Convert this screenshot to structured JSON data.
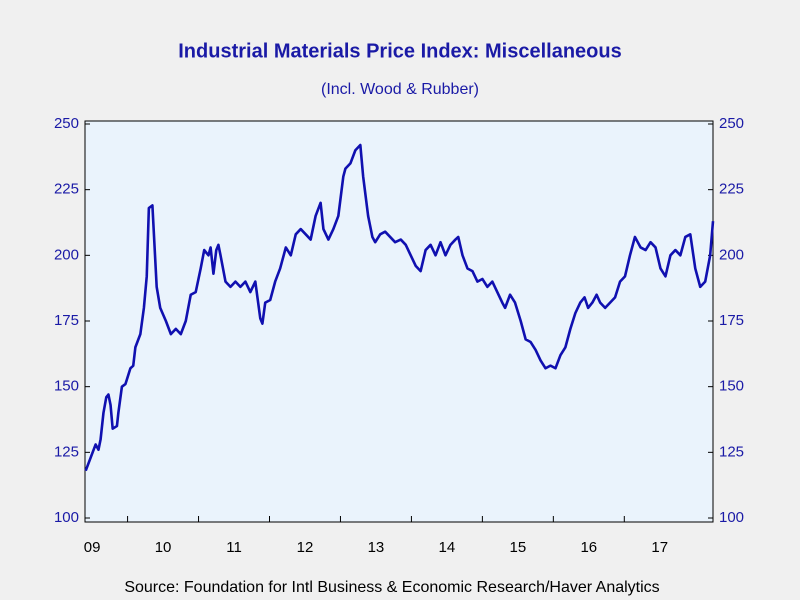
{
  "chart_data": {
    "type": "line",
    "title": "Industrial Materials Price Index: Miscellaneous",
    "subtitle": "(Incl. Wood & Rubber)",
    "source": "Source:  Foundation for Intl Business & Economic Research/Haver Analytics",
    "x": [
      2009.41,
      2009.48,
      2009.55,
      2009.59,
      2009.62,
      2009.66,
      2009.7,
      2009.73,
      2009.76,
      2009.79,
      2009.85,
      2009.87,
      2009.92,
      2009.97,
      2010.04,
      2010.08,
      2010.11,
      2010.18,
      2010.23,
      2010.27,
      2010.3,
      2010.35,
      2010.41,
      2010.46,
      2010.54,
      2010.61,
      2010.68,
      2010.75,
      2010.82,
      2010.89,
      2010.96,
      2011.03,
      2011.08,
      2011.14,
      2011.17,
      2011.21,
      2011.25,
      2011.28,
      2011.31,
      2011.38,
      2011.45,
      2011.52,
      2011.59,
      2011.66,
      2011.73,
      2011.8,
      2011.87,
      2011.9,
      2011.94,
      2012.01,
      2012.08,
      2012.15,
      2012.23,
      2012.3,
      2012.37,
      2012.44,
      2012.51,
      2012.58,
      2012.65,
      2012.72,
      2012.76,
      2012.83,
      2012.9,
      2012.97,
      2013.04,
      2013.07,
      2013.14,
      2013.21,
      2013.28,
      2013.32,
      2013.39,
      2013.45,
      2013.49,
      2013.56,
      2013.63,
      2013.7,
      2013.77,
      2013.85,
      2013.92,
      2013.99,
      2014.06,
      2014.13,
      2014.2,
      2014.27,
      2014.34,
      2014.41,
      2014.48,
      2014.55,
      2014.62,
      2014.66,
      2014.72,
      2014.79,
      2014.86,
      2014.93,
      2015.0,
      2015.07,
      2015.14,
      2015.21,
      2015.28,
      2015.32,
      2015.39,
      2015.46,
      2015.54,
      2015.61,
      2015.68,
      2015.75,
      2015.82,
      2015.89,
      2015.96,
      2016.03,
      2016.1,
      2016.17,
      2016.24,
      2016.31,
      2016.38,
      2016.44,
      2016.49,
      2016.55,
      2016.61,
      2016.66,
      2016.73,
      2016.8,
      2016.87,
      2016.94,
      2017.01,
      2017.08,
      2017.15,
      2017.23,
      2017.3,
      2017.37,
      2017.44,
      2017.51,
      2017.58,
      2017.65,
      2017.72,
      2017.79,
      2017.86,
      2017.93,
      2018.0,
      2018.07,
      2018.14,
      2018.21,
      2018.25
    ],
    "series": [
      {
        "color": "#1010b0",
        "values": [
          118,
          123,
          128,
          126,
          130,
          140,
          146,
          147,
          143,
          134,
          135,
          140,
          150,
          151,
          157,
          158,
          165,
          170,
          180,
          192,
          218,
          219,
          188,
          180,
          175,
          170,
          172,
          170,
          175,
          185,
          186,
          195,
          202,
          200,
          203,
          193,
          202,
          204,
          200,
          190,
          188,
          190,
          188,
          190,
          186,
          190,
          176,
          174,
          182,
          183,
          190,
          195,
          203,
          200,
          208,
          210,
          208,
          206,
          215,
          220,
          210,
          206,
          210,
          215,
          230,
          233,
          235,
          240,
          242,
          230,
          215,
          207,
          205,
          208,
          209,
          207,
          205,
          206,
          204,
          200,
          196,
          194,
          202,
          204,
          200,
          205,
          200,
          204,
          206,
          207,
          200,
          195,
          194,
          190,
          191,
          188,
          190,
          186,
          182,
          180,
          185,
          182,
          175,
          168,
          167,
          164,
          160,
          157,
          158,
          157,
          162,
          165,
          172,
          178,
          182,
          184,
          180,
          182,
          185,
          182,
          180,
          182,
          184,
          190,
          192,
          200,
          207,
          203,
          202,
          205,
          203,
          195,
          192,
          200,
          202,
          200,
          207,
          208,
          195,
          188,
          190,
          200,
          213
        ]
      }
    ],
    "xlim": [
      2009.4,
      2018.25
    ],
    "xticks": [
      {
        "value": 2009,
        "label": "09"
      },
      {
        "value": 2010,
        "label": "10"
      },
      {
        "value": 2011,
        "label": "11"
      },
      {
        "value": 2012,
        "label": "12"
      },
      {
        "value": 2013,
        "label": "13"
      },
      {
        "value": 2014,
        "label": "14"
      },
      {
        "value": 2015,
        "label": "15"
      },
      {
        "value": 2016,
        "label": "16"
      },
      {
        "value": 2017,
        "label": "17"
      }
    ],
    "ylim": [
      100,
      250
    ],
    "yticks": [
      100,
      125,
      150,
      175,
      200,
      225,
      250
    ]
  }
}
